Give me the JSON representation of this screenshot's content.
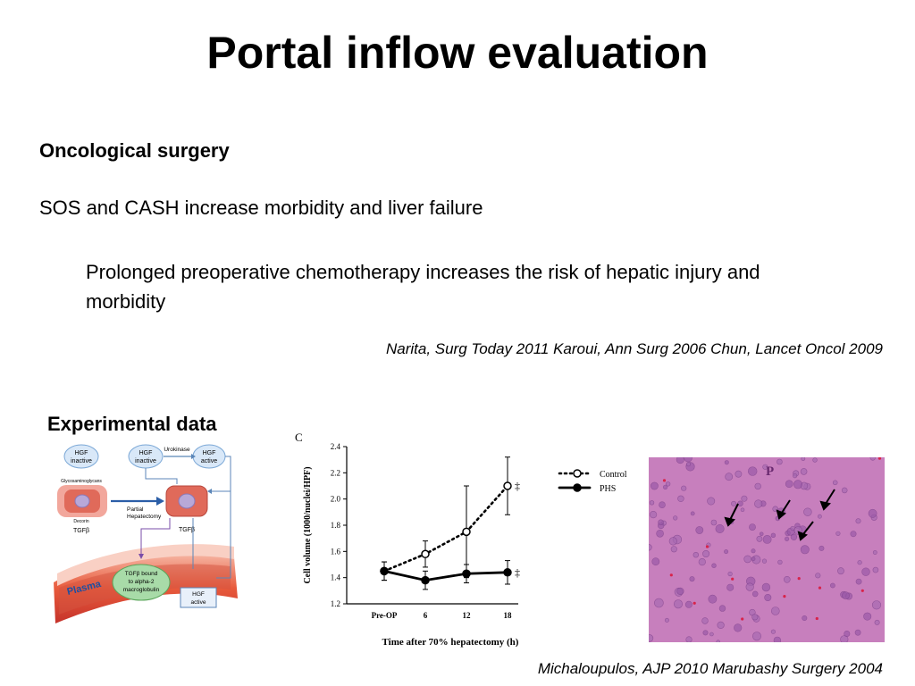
{
  "slide": {
    "title": "Portal inflow evaluation",
    "heading_oncology": "Oncological surgery",
    "line_sos": "SOS and CASH increase morbidity and liver failure",
    "line_chemo": "Prolonged preoperative chemotherapy increases the risk of hepatic injury and morbidity",
    "ref_clinical": "Narita, Surg Today 2011  Karoui, Ann Surg 2006  Chun, Lancet Oncol 2009",
    "heading_experimental": "Experimental data",
    "ref_experimental": "Michaloupulos, AJP 2010  Marubashy Surgery 2004"
  },
  "diagram": {
    "hgf_inactive_1": [
      "HGF",
      "inactive"
    ],
    "hgf_inactive_2": [
      "HGF",
      "inactive"
    ],
    "hgf_active": [
      "HGF",
      "active"
    ],
    "urokinase": "Urokinase",
    "glycosaminoglycans": "Glycosaminoglycans",
    "decorin": "Decorin",
    "tgfb_left": "TGFβ",
    "tgfb_mid": "TGFβ",
    "partial_hepatectomy": [
      "Partial",
      "Hepatectomy"
    ],
    "tgfb_bound": [
      "TGFβ bound",
      "to alpha-2",
      "macroglobulin"
    ],
    "plasma": "Plasma",
    "hgf_active_plasma": [
      "HGF",
      "active"
    ]
  },
  "micrograph": {
    "label": "P",
    "background_color": "#c77fbd"
  },
  "chart_data": {
    "type": "line",
    "panel_label": "C",
    "categories": [
      "Pre-OP",
      "6",
      "12",
      "18"
    ],
    "ylabel": "Cell volume (1000/nuclei/HPF)",
    "xlabel": "Time after 70% hepatectomy (h)",
    "ylim": [
      1.2,
      2.4
    ],
    "yticks": [
      "1.2",
      "1.4",
      "1.6",
      "1.8",
      "2.0",
      "2.2",
      "2.4"
    ],
    "legend_position": "right",
    "series": [
      {
        "name": "Control",
        "style": "dotted",
        "marker": "open-circle",
        "values": [
          1.45,
          1.58,
          1.75,
          2.1
        ],
        "errors": [
          0.07,
          0.1,
          0.35,
          0.22
        ],
        "annotations": [
          "",
          "",
          "",
          "‡"
        ]
      },
      {
        "name": "PHS",
        "style": "solid",
        "marker": "filled-circle",
        "values": [
          1.45,
          1.38,
          1.43,
          1.44
        ],
        "errors": [
          0.07,
          0.07,
          0.07,
          0.09
        ],
        "annotations": [
          "",
          "",
          "",
          "‡"
        ]
      }
    ]
  }
}
